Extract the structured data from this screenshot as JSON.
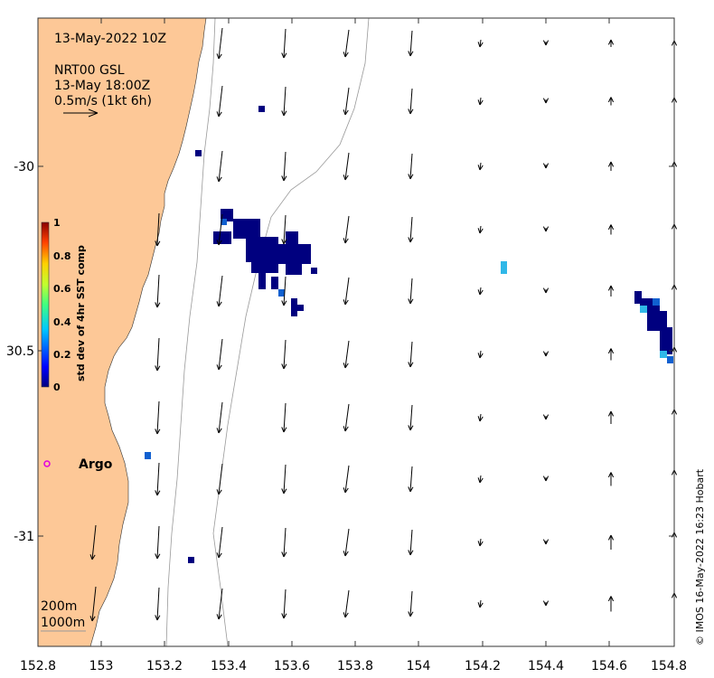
{
  "title": {
    "timestamp": "13-May-2022 10Z",
    "product": "NRT00 GSL",
    "product_time": "13-May 18:00Z",
    "scale_label": "0.5m/s (1kt 6h)"
  },
  "colorbar": {
    "label": "std dev of 4hr SST comp",
    "ticks": [
      "1",
      "0.8",
      "0.6",
      "0.4",
      "0.2",
      "0"
    ]
  },
  "axes": {
    "x_ticks": [
      "152.8",
      "153",
      "153.2",
      "153.4",
      "153.6",
      "153.8",
      "154",
      "154.2",
      "154.4",
      "154.6",
      "154.8"
    ],
    "y_ticks": [
      "-30",
      "30.5",
      "-31"
    ],
    "x_range": [
      152.8,
      154.8
    ],
    "y_range": [
      -31.3,
      -29.6
    ]
  },
  "legend": {
    "contour_200": "200m",
    "contour_1000": "1000m"
  },
  "marker": {
    "label": "Argo",
    "color": "#e000e0"
  },
  "credit": "© IMOS 16-May-2022 16:23 Hobart",
  "colors": {
    "land": "#fdc897",
    "sst_low": "#00007f",
    "sst_mid": "#1060d0",
    "sst_cyan": "#30b8e8"
  }
}
